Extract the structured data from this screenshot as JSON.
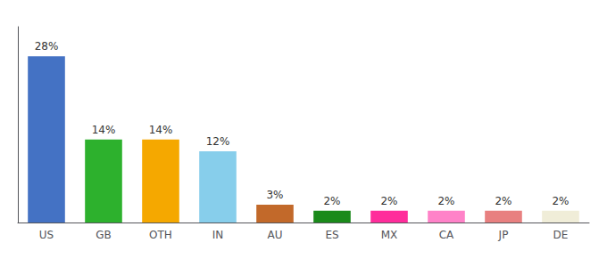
{
  "chart_data": {
    "type": "bar",
    "categories": [
      "US",
      "GB",
      "OTH",
      "IN",
      "AU",
      "ES",
      "MX",
      "CA",
      "JP",
      "DE"
    ],
    "values": [
      28,
      14,
      14,
      12,
      3,
      2,
      2,
      2,
      2,
      2
    ],
    "value_labels": [
      "28%",
      "14%",
      "14%",
      "12%",
      "3%",
      "2%",
      "2%",
      "2%",
      "2%",
      "2%"
    ],
    "colors": [
      "#4472c4",
      "#2db12d",
      "#f5a800",
      "#87ceeb",
      "#c2692a",
      "#1a8a1a",
      "#ff2d9b",
      "#ff82c8",
      "#e88080",
      "#f0edd8"
    ],
    "data_labels": true,
    "ylim": [
      0,
      33
    ],
    "yticks": [],
    "tick_labels": "x",
    "grid": false
  }
}
